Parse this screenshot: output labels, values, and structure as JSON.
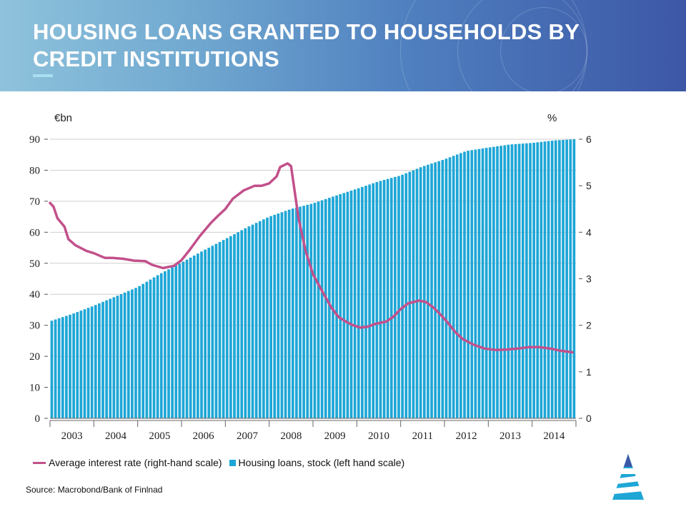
{
  "title": "HOUSING LOANS GRANTED TO HOUSEHOLDS BY CREDIT INSTITUTIONS",
  "source": "Source: Macrobond/Bank of Finlnad",
  "colors": {
    "bar": "#1ea6d6",
    "line": "#c2508b",
    "header_dark": "#3c57a6",
    "header_light": "#8fc3dc"
  },
  "chart_data": {
    "type": "bar+line",
    "left_unit": "€bn",
    "right_unit": "%",
    "left_ylim": [
      0,
      90
    ],
    "left_ticks": [
      "0",
      "10",
      "20",
      "30",
      "40",
      "50",
      "60",
      "70",
      "80",
      "90"
    ],
    "right_ylim": [
      0,
      6
    ],
    "right_ticks": [
      "0",
      "1",
      "2",
      "3",
      "4",
      "5",
      "6"
    ],
    "x_years": [
      "2003",
      "2004",
      "2005",
      "2006",
      "2007",
      "2008",
      "2009",
      "2010",
      "2011",
      "2012",
      "2013",
      "2014"
    ],
    "x_range": [
      2003.0,
      2015.0
    ],
    "legend": [
      {
        "name": "Average interest rate (right-hand scale)",
        "kind": "line"
      },
      {
        "name": "Housing loans, stock (left hand scale)",
        "kind": "bar"
      }
    ],
    "series": [
      {
        "name": "Housing loans, stock (left hand scale)",
        "axis": "left",
        "type": "bar",
        "points": [
          [
            2003.0,
            31.3
          ],
          [
            2003.5,
            33.6
          ],
          [
            2004.0,
            36.3
          ],
          [
            2004.5,
            39.3
          ],
          [
            2005.0,
            42.3
          ],
          [
            2005.5,
            46.5
          ],
          [
            2006.0,
            50.2
          ],
          [
            2006.5,
            54.1
          ],
          [
            2007.0,
            57.8
          ],
          [
            2007.5,
            61.6
          ],
          [
            2008.0,
            65.0
          ],
          [
            2008.5,
            67.5
          ],
          [
            2009.0,
            69.3
          ],
          [
            2009.5,
            71.7
          ],
          [
            2010.0,
            74.0
          ],
          [
            2010.5,
            76.4
          ],
          [
            2011.0,
            78.3
          ],
          [
            2011.5,
            81.2
          ],
          [
            2012.0,
            83.5
          ],
          [
            2012.5,
            86.2
          ],
          [
            2013.0,
            87.3
          ],
          [
            2013.5,
            88.3
          ],
          [
            2014.0,
            88.8
          ],
          [
            2014.5,
            89.6
          ],
          [
            2014.99,
            90.0
          ]
        ]
      },
      {
        "name": "Average interest rate (right-hand scale)",
        "axis": "right",
        "type": "line",
        "points": [
          [
            2003.0,
            4.63
          ],
          [
            2003.08,
            4.55
          ],
          [
            2003.17,
            4.3
          ],
          [
            2003.33,
            4.12
          ],
          [
            2003.42,
            3.85
          ],
          [
            2003.58,
            3.72
          ],
          [
            2003.83,
            3.6
          ],
          [
            2004.0,
            3.55
          ],
          [
            2004.25,
            3.45
          ],
          [
            2004.42,
            3.45
          ],
          [
            2004.67,
            3.43
          ],
          [
            2004.92,
            3.39
          ],
          [
            2005.17,
            3.38
          ],
          [
            2005.33,
            3.3
          ],
          [
            2005.58,
            3.23
          ],
          [
            2005.83,
            3.28
          ],
          [
            2006.0,
            3.4
          ],
          [
            2006.17,
            3.6
          ],
          [
            2006.42,
            3.92
          ],
          [
            2006.67,
            4.2
          ],
          [
            2006.83,
            4.35
          ],
          [
            2007.0,
            4.5
          ],
          [
            2007.17,
            4.72
          ],
          [
            2007.42,
            4.9
          ],
          [
            2007.67,
            5.0
          ],
          [
            2007.83,
            5.0
          ],
          [
            2008.0,
            5.05
          ],
          [
            2008.17,
            5.2
          ],
          [
            2008.25,
            5.4
          ],
          [
            2008.42,
            5.48
          ],
          [
            2008.5,
            5.42
          ],
          [
            2008.58,
            4.9
          ],
          [
            2008.67,
            4.3
          ],
          [
            2008.83,
            3.6
          ],
          [
            2009.0,
            3.1
          ],
          [
            2009.17,
            2.8
          ],
          [
            2009.42,
            2.38
          ],
          [
            2009.58,
            2.18
          ],
          [
            2009.75,
            2.08
          ],
          [
            2009.92,
            2.0
          ],
          [
            2010.08,
            1.95
          ],
          [
            2010.25,
            1.97
          ],
          [
            2010.42,
            2.03
          ],
          [
            2010.67,
            2.08
          ],
          [
            2010.83,
            2.18
          ],
          [
            2011.0,
            2.35
          ],
          [
            2011.17,
            2.47
          ],
          [
            2011.42,
            2.53
          ],
          [
            2011.58,
            2.5
          ],
          [
            2011.75,
            2.38
          ],
          [
            2011.92,
            2.22
          ],
          [
            2012.08,
            2.05
          ],
          [
            2012.25,
            1.85
          ],
          [
            2012.42,
            1.7
          ],
          [
            2012.67,
            1.58
          ],
          [
            2012.92,
            1.5
          ],
          [
            2013.17,
            1.47
          ],
          [
            2013.42,
            1.48
          ],
          [
            2013.67,
            1.5
          ],
          [
            2013.92,
            1.53
          ],
          [
            2014.17,
            1.53
          ],
          [
            2014.42,
            1.5
          ],
          [
            2014.67,
            1.45
          ],
          [
            2014.92,
            1.42
          ]
        ]
      }
    ]
  }
}
